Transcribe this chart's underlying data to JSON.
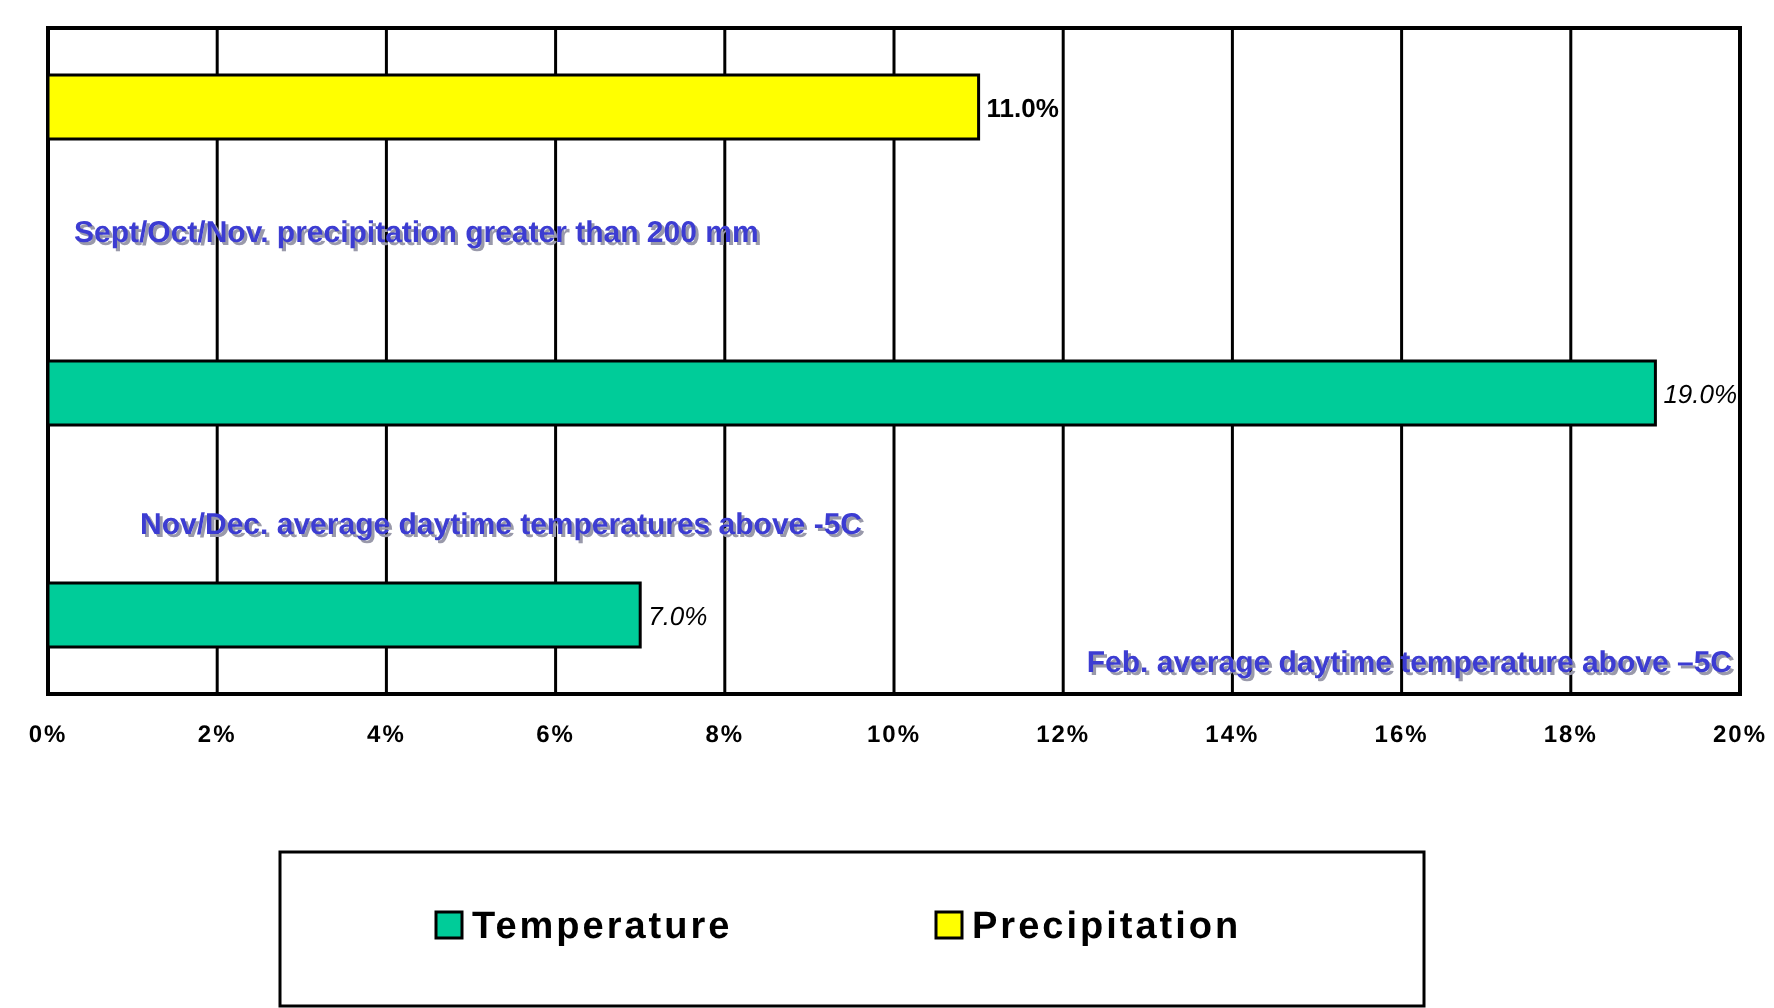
{
  "chart_data": {
    "type": "bar",
    "orientation": "horizontal",
    "categories": [
      null,
      null,
      null
    ],
    "series": [
      {
        "name": "Temperature",
        "color": "#00cc99",
        "values": [
          null,
          19.0,
          7.0
        ],
        "value_labels": [
          null,
          "19.0%",
          "7.0%"
        ]
      },
      {
        "name": "Precipitation",
        "color": "#ffff00",
        "values": [
          11.0,
          null,
          null
        ],
        "value_labels": [
          "11.0%",
          null,
          null
        ]
      }
    ],
    "xlim": [
      0,
      20
    ],
    "xticks": [
      {
        "value": 0,
        "label": "0%"
      },
      {
        "value": 2,
        "label": "2%"
      },
      {
        "value": 4,
        "label": "4%"
      },
      {
        "value": 6,
        "label": "6%"
      },
      {
        "value": 8,
        "label": "8%"
      },
      {
        "value": 10,
        "label": "10%"
      },
      {
        "value": 12,
        "label": "12%"
      },
      {
        "value": 14,
        "label": "14%"
      },
      {
        "value": 16,
        "label": "16%"
      },
      {
        "value": 18,
        "label": "18%"
      },
      {
        "value": 20,
        "label": "20%"
      }
    ],
    "grid": "x",
    "legend": "bottom",
    "annotations": [
      "Sept/Oct/Nov. precipitation greater than 200 mm",
      "Nov/Dec. average daytime temperatures above -5C",
      "Feb. average daytime temperature above –5C"
    ]
  }
}
